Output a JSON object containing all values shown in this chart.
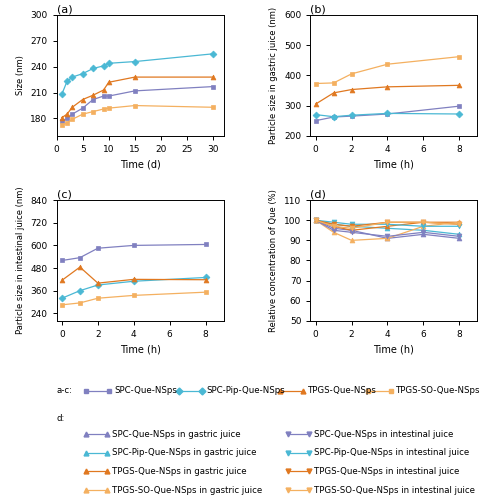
{
  "panel_a": {
    "title": "(a)",
    "xlabel": "Time (d)",
    "ylabel": "Size (nm)",
    "xlim": [
      0,
      32
    ],
    "ylim": [
      160,
      300
    ],
    "yticks": [
      180,
      210,
      240,
      270,
      300
    ],
    "xticks": [
      0,
      5,
      10,
      15,
      20,
      25,
      30
    ],
    "series": {
      "SPC-Que-NSps": {
        "x": [
          1,
          2,
          3,
          5,
          7,
          9,
          10,
          15,
          30
        ],
        "y": [
          177,
          180,
          185,
          192,
          202,
          206,
          206,
          212,
          217
        ],
        "color": "#8080c0",
        "marker": "s"
      },
      "SPC-Pip-Que-NSps": {
        "x": [
          1,
          2,
          3,
          5,
          7,
          9,
          10,
          15,
          30
        ],
        "y": [
          208,
          223,
          228,
          232,
          238,
          241,
          244,
          246,
          255
        ],
        "color": "#4ab8d4",
        "marker": "D"
      },
      "TPGS-Que-NSps": {
        "x": [
          1,
          2,
          3,
          5,
          7,
          9,
          10,
          15,
          30
        ],
        "y": [
          181,
          185,
          193,
          202,
          207,
          213,
          222,
          228,
          228
        ],
        "color": "#e07820",
        "marker": "^"
      },
      "TPGS-SO-Que-NSps": {
        "x": [
          1,
          2,
          3,
          5,
          7,
          9,
          10,
          15,
          30
        ],
        "y": [
          172,
          175,
          179,
          185,
          188,
          191,
          192,
          195,
          193
        ],
        "color": "#f4b060",
        "marker": "s"
      }
    }
  },
  "panel_b": {
    "title": "(b)",
    "xlabel": "Time (h)",
    "ylabel": "Particle size in gastric juice (nm)",
    "xlim": [
      -0.3,
      9
    ],
    "ylim": [
      200,
      600
    ],
    "yticks": [
      200,
      300,
      400,
      500,
      600
    ],
    "xticks": [
      0,
      2,
      4,
      6,
      8
    ],
    "series": {
      "SPC-Que-NSps": {
        "x": [
          0,
          1,
          2,
          4,
          8
        ],
        "y": [
          250,
          262,
          265,
          272,
          298
        ],
        "color": "#8080c0",
        "marker": "s"
      },
      "SPC-Pip-Que-NSps": {
        "x": [
          0,
          1,
          2,
          4,
          8
        ],
        "y": [
          270,
          263,
          268,
          274,
          272
        ],
        "color": "#4ab8d4",
        "marker": "D"
      },
      "TPGS-Que-NSps": {
        "x": [
          0,
          1,
          2,
          4,
          8
        ],
        "y": [
          305,
          342,
          353,
          362,
          367
        ],
        "color": "#e07820",
        "marker": "^"
      },
      "TPGS-SO-Que-NSps": {
        "x": [
          0,
          1,
          2,
          4,
          8
        ],
        "y": [
          373,
          375,
          405,
          437,
          462
        ],
        "color": "#f4b060",
        "marker": "s"
      }
    }
  },
  "panel_c": {
    "title": "(c)",
    "xlabel": "Time (h)",
    "ylabel": "Particle size in intestinal juice (nm)",
    "xlim": [
      -0.3,
      9
    ],
    "ylim": [
      200,
      840
    ],
    "yticks": [
      240,
      360,
      480,
      600,
      720,
      840
    ],
    "xticks": [
      0,
      2,
      4,
      6,
      8
    ],
    "series": {
      "SPC-Que-NSps": {
        "x": [
          0,
          1,
          2,
          4,
          8
        ],
        "y": [
          520,
          535,
          585,
          600,
          605
        ],
        "color": "#8080c0",
        "marker": "s"
      },
      "SPC-Pip-Que-NSps": {
        "x": [
          0,
          1,
          2,
          4,
          8
        ],
        "y": [
          320,
          360,
          390,
          410,
          430
        ],
        "color": "#4ab8d4",
        "marker": "D"
      },
      "TPGS-Que-NSps": {
        "x": [
          0,
          1,
          2,
          4,
          8
        ],
        "y": [
          415,
          485,
          400,
          420,
          418
        ],
        "color": "#e07820",
        "marker": "^"
      },
      "TPGS-SO-Que-NSps": {
        "x": [
          0,
          1,
          2,
          4,
          8
        ],
        "y": [
          285,
          295,
          320,
          335,
          352
        ],
        "color": "#f4b060",
        "marker": "s"
      }
    }
  },
  "panel_d": {
    "title": "(d)",
    "xlabel": "Time (h)",
    "ylabel": "Relative concentration of Que (%)",
    "xlim": [
      -0.3,
      9
    ],
    "ylim": [
      50,
      110
    ],
    "yticks": [
      50,
      60,
      70,
      80,
      90,
      100,
      110
    ],
    "xticks": [
      0,
      2,
      4,
      6,
      8
    ],
    "series": {
      "SPC-Que-gastric": {
        "x": [
          0,
          1,
          2,
          4,
          6,
          8
        ],
        "y": [
          100,
          96,
          95,
          91,
          93,
          91
        ],
        "color": "#8080c0",
        "marker": "^",
        "linestyle": "-"
      },
      "SPC-Pip-gastric": {
        "x": [
          0,
          1,
          2,
          4,
          6,
          8
        ],
        "y": [
          100,
          98,
          97,
          96,
          95,
          93
        ],
        "color": "#4ab8d4",
        "marker": "^",
        "linestyle": "-"
      },
      "TPGS-Que-gastric": {
        "x": [
          0,
          1,
          2,
          4,
          6,
          8
        ],
        "y": [
          100,
          97,
          95,
          97,
          99,
          99
        ],
        "color": "#e07820",
        "marker": "^",
        "linestyle": "-"
      },
      "TPGS-SO-gastric": {
        "x": [
          0,
          1,
          2,
          4,
          6,
          8
        ],
        "y": [
          100,
          94,
          90,
          91,
          97,
          99
        ],
        "color": "#f4b060",
        "marker": "^",
        "linestyle": "-"
      },
      "SPC-Que-intestinal": {
        "x": [
          0,
          1,
          2,
          4,
          6,
          8
        ],
        "y": [
          100,
          95,
          94,
          92,
          94,
          92
        ],
        "color": "#8080c0",
        "marker": "v",
        "linestyle": "-"
      },
      "SPC-Pip-intestinal": {
        "x": [
          0,
          1,
          2,
          4,
          6,
          8
        ],
        "y": [
          100,
          99,
          98,
          98,
          97,
          97
        ],
        "color": "#4ab8d4",
        "marker": "v",
        "linestyle": "-"
      },
      "TPGS-Que-intestinal": {
        "x": [
          0,
          1,
          2,
          4,
          6,
          8
        ],
        "y": [
          100,
          98,
          97,
          99,
          99,
          98
        ],
        "color": "#e07820",
        "marker": "v",
        "linestyle": "-"
      },
      "TPGS-SO-intestinal": {
        "x": [
          0,
          1,
          2,
          4,
          6,
          8
        ],
        "y": [
          100,
          97,
          96,
          99,
          99,
          98
        ],
        "color": "#f4b060",
        "marker": "v",
        "linestyle": "-"
      }
    }
  },
  "legend_ac": [
    {
      "label": "SPC-Que-NSps",
      "color": "#8080c0",
      "marker": "s"
    },
    {
      "label": "SPC-Pip-Que-NSps",
      "color": "#4ab8d4",
      "marker": "D"
    },
    {
      "label": "TPGS-Que-NSps",
      "color": "#e07820",
      "marker": "^"
    },
    {
      "label": "TPGS-SO-Que-NSps",
      "color": "#f4b060",
      "marker": "s"
    }
  ],
  "legend_d_left": [
    {
      "label": "SPC-Que-NSps in gastric juice",
      "color": "#8080c0",
      "marker": "^"
    },
    {
      "label": "SPC-Pip-Que-NSps in gastric juice",
      "color": "#4ab8d4",
      "marker": "^"
    },
    {
      "label": "TPGS-Que-NSps in gastric juice",
      "color": "#e07820",
      "marker": "^"
    },
    {
      "label": "TPGS-SO-Que-NSps in gastric juice",
      "color": "#f4b060",
      "marker": "^"
    }
  ],
  "legend_d_right": [
    {
      "label": "SPC-Que-NSps in intestinal juice",
      "color": "#8080c0",
      "marker": "v"
    },
    {
      "label": "SPC-Pip-Que-NSps in intestinal juice",
      "color": "#4ab8d4",
      "marker": "v"
    },
    {
      "label": "TPGS-Que-NSps in intestinal juice",
      "color": "#e07820",
      "marker": "v"
    },
    {
      "label": "TPGS-SO-Que-NSps in intestinal juice",
      "color": "#f4b060",
      "marker": "v"
    }
  ],
  "bg_color": "#ffffff"
}
